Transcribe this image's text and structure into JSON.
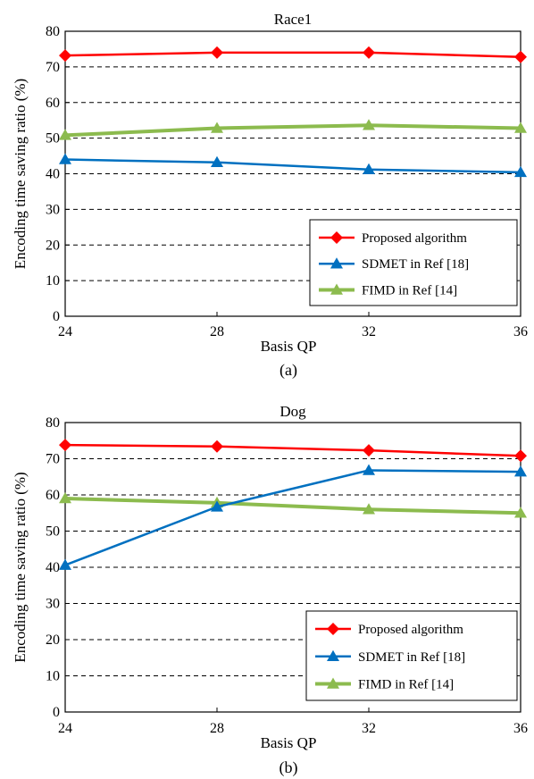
{
  "chart_data": [
    {
      "type": "line",
      "title": "Race1",
      "caption": "(a)",
      "xlabel": "Basis QP",
      "ylabel": "Encoding  time saving  ratio  (%)",
      "x": [
        24,
        28,
        32,
        36
      ],
      "xticks": [
        "24",
        "28",
        "32",
        "36"
      ],
      "ylim": [
        0,
        80
      ],
      "yticks": [
        "0",
        "10",
        "20",
        "30",
        "40",
        "50",
        "60",
        "70",
        "80"
      ],
      "grid": "horizontal dashed",
      "legend_position": "bottom-right",
      "series": [
        {
          "name": "Proposed algorithm",
          "color": "#ff0000",
          "marker": "diamond",
          "values": [
            73.2,
            74.0,
            74.0,
            72.8
          ]
        },
        {
          "name": "SDMET  in  Ref [18]",
          "color": "#0070c0",
          "marker": "triangle",
          "values": [
            44.0,
            43.2,
            41.2,
            40.4
          ]
        },
        {
          "name": "FIMD in Ref [14]",
          "color": "#8cbb4e",
          "marker": "triangle",
          "values": [
            50.8,
            52.8,
            53.6,
            52.8
          ]
        }
      ]
    },
    {
      "type": "line",
      "title": "Dog",
      "caption": "(b)",
      "xlabel": "Basis QP",
      "ylabel": "Encoding  time saving  ratio  (%)",
      "x": [
        24,
        28,
        32,
        36
      ],
      "xticks": [
        "24",
        "28",
        "32",
        "36"
      ],
      "ylim": [
        0,
        80
      ],
      "yticks": [
        "0",
        "10",
        "20",
        "30",
        "40",
        "50",
        "60",
        "70",
        "80"
      ],
      "grid": "horizontal dashed",
      "legend_position": "bottom-right",
      "series": [
        {
          "name": "Proposed algorithm",
          "color": "#ff0000",
          "marker": "diamond",
          "values": [
            73.8,
            73.4,
            72.3,
            70.8
          ]
        },
        {
          "name": "SDMET  in  Ref [18]",
          "color": "#0070c0",
          "marker": "triangle",
          "values": [
            40.6,
            56.7,
            66.8,
            66.4
          ]
        },
        {
          "name": "FIMD in Ref [14]",
          "color": "#8cbb4e",
          "marker": "triangle",
          "values": [
            59.0,
            57.8,
            56.0,
            55.0
          ]
        }
      ]
    }
  ]
}
